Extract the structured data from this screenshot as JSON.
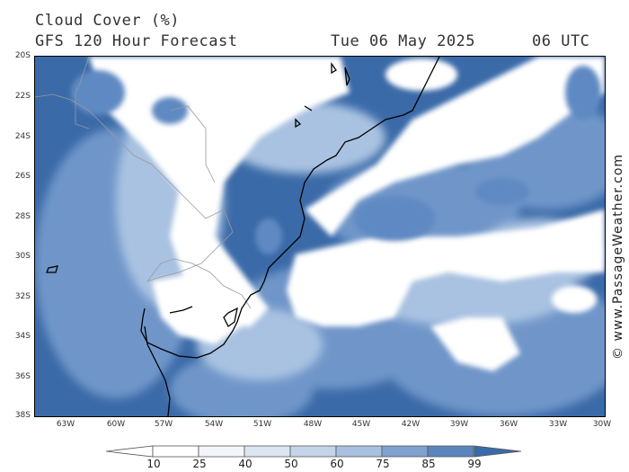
{
  "header": {
    "title": "Cloud Cover (%)",
    "subtitle": "GFS 120 Hour Forecast",
    "date": "Tue 06 May 2025",
    "time": "06 UTC"
  },
  "map": {
    "lat_labels": [
      "20S",
      "22S",
      "24S",
      "26S",
      "28S",
      "30S",
      "32S",
      "34S",
      "36S",
      "38S"
    ],
    "lon_labels": [
      "63W",
      "60W",
      "57W",
      "54W",
      "51W",
      "48W",
      "45W",
      "42W",
      "39W",
      "36W",
      "33W",
      "30W"
    ],
    "colors": {
      "ocean_cloud_99": "#3b6aa8",
      "coastline": "#000000",
      "borders": "#9a9a9a"
    }
  },
  "credit": "© www.PassageWeather.com",
  "legend": {
    "ticks": [
      "10",
      "25",
      "40",
      "50",
      "60",
      "75",
      "85",
      "99"
    ],
    "colors": [
      "#ffffff",
      "#f2f6fb",
      "#dce6f2",
      "#c4d5ea",
      "#a8c1e0",
      "#7fa2d0",
      "#5a86bd",
      "#3b6aa8"
    ]
  }
}
